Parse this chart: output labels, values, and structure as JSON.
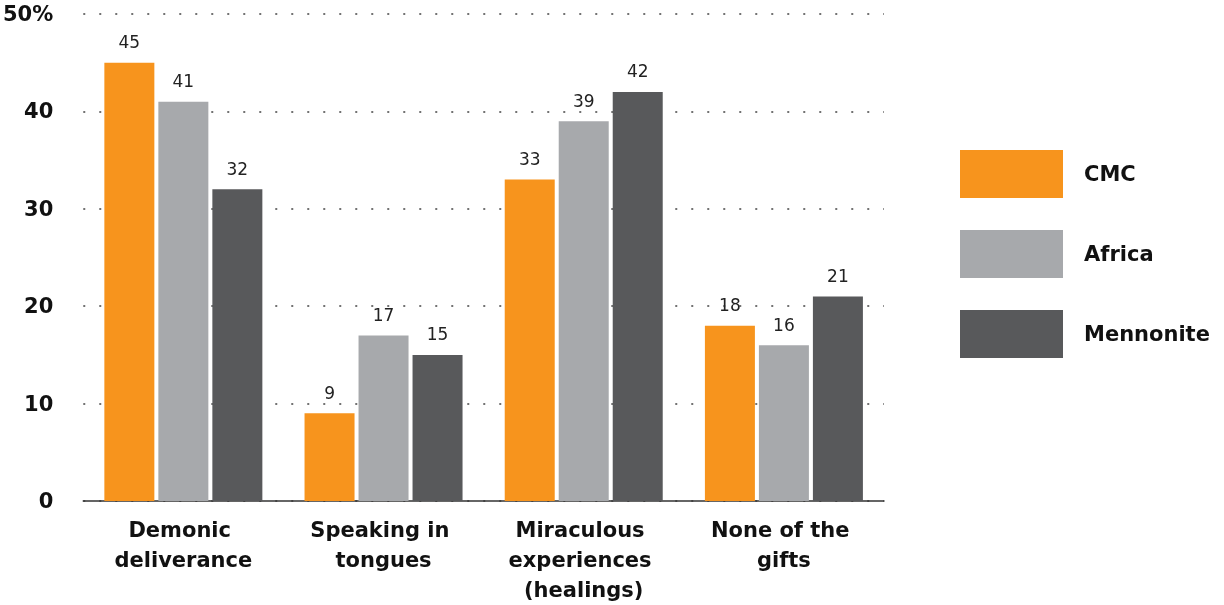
{
  "chart_data": {
    "type": "bar",
    "categories": [
      "Demonic deliverance",
      "Speaking in tongues",
      "Miraculous experiences (healings)",
      "None of the gifts"
    ],
    "series": [
      {
        "name": "CMC",
        "color": "#f7941d",
        "values": [
          45,
          9,
          33,
          18
        ]
      },
      {
        "name": "Africa",
        "color": "#a7a9ac",
        "values": [
          41,
          17,
          39,
          16
        ]
      },
      {
        "name": "Mennonite",
        "color": "#58595b",
        "values": [
          32,
          15,
          42,
          21
        ]
      }
    ],
    "ylim": [
      0,
      50
    ],
    "yticks": [
      0,
      10,
      20,
      30,
      40,
      {
        "value": 50,
        "label": "50%"
      }
    ],
    "grid": "y",
    "legend": "right",
    "data_labels": true
  }
}
